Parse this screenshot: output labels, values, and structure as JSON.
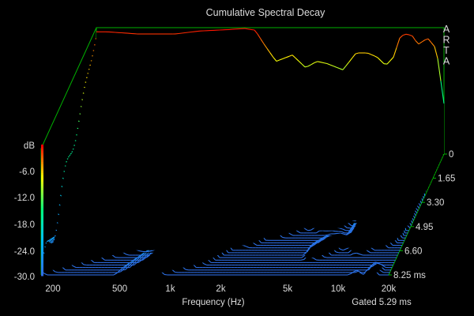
{
  "chart_data": {
    "type": "waterfall",
    "title": "Cumulative Spectral Decay",
    "xlabel": "Frequency (Hz)",
    "ylabel": "dB",
    "brand": "ARTA",
    "gate_label": "Gated 5.29 ms",
    "x_scale": "log",
    "x_range_hz": [
      170,
      20000
    ],
    "x_ticks": [
      {
        "value": 200,
        "label": "200"
      },
      {
        "value": 500,
        "label": "500"
      },
      {
        "value": 1000,
        "label": "1k"
      },
      {
        "value": 2000,
        "label": "2k"
      },
      {
        "value": 5000,
        "label": "5k"
      },
      {
        "value": 10000,
        "label": "10k"
      },
      {
        "value": 20000,
        "label": "20k"
      }
    ],
    "db_range": [
      -30,
      0
    ],
    "db_ticks": [
      "dB",
      "-6.0",
      "-12.0",
      "-18.0",
      "-24.0",
      "-30.0"
    ],
    "time_ticks": [
      "0",
      "1.65",
      "3.30",
      "4.95",
      "6.60",
      "8.25 ms"
    ],
    "time_range_ms": [
      0,
      8.25
    ],
    "slice_count": 50,
    "slice_step_ms": 0.165,
    "colormap": [
      "#ff0000",
      "#ffff00",
      "#00ff80",
      "#00b8ff",
      "#2e6ee6"
    ],
    "axis_color": "#00b000",
    "series": [
      {
        "name": "0 ms",
        "freq_hz": [
          200,
          300,
          500,
          700,
          1000,
          1300,
          1500,
          1700,
          2000,
          2500,
          3000,
          3500,
          4000,
          5000,
          6000,
          7000,
          8000,
          9000,
          10000,
          11000,
          12000,
          13000,
          14000,
          16000,
          18000,
          20000
        ],
        "db": [
          -1.0,
          -1.5,
          -1.5,
          -0.8,
          -0.5,
          -0.2,
          -0.6,
          -4.0,
          -8.0,
          -6.5,
          -9.5,
          -8.0,
          -8.5,
          -10.0,
          -6.0,
          -6.0,
          -7.0,
          -9.0,
          -7.0,
          -2.0,
          -1.5,
          -2.0,
          -4.0,
          -2.5,
          -5.0,
          -18.0
        ]
      }
    ]
  }
}
